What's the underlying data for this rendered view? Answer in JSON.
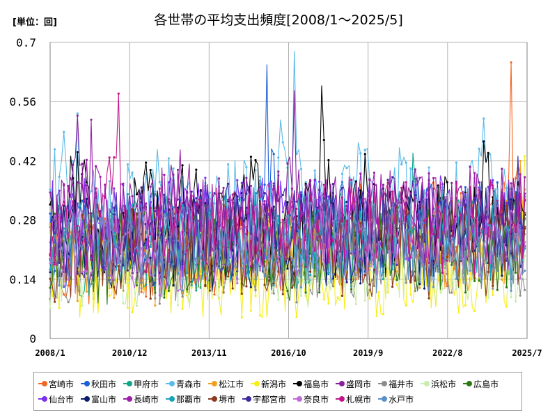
{
  "unit_label": "[単位：回]",
  "chart_data": {
    "type": "line",
    "title": "各世帯の平均支出頻度[2008/1～2025/5]",
    "xlabel": "",
    "ylabel": "",
    "ylim": [
      0,
      0.7
    ],
    "y_ticks": [
      "0",
      "0.14",
      "0.28",
      "0.42",
      "0.56",
      "0.7"
    ],
    "x_ticks": [
      "2008/1",
      "2010/12",
      "2013/11",
      "2016/10",
      "2019/9",
      "2022/8",
      "2025/7"
    ],
    "x_range": [
      "2008/1",
      "2025/7"
    ],
    "grid": true,
    "legend_position": "bottom",
    "series_count_note": "",
    "series": [
      {
        "name": "宮崎市",
        "color": "#f26522",
        "anchors": [
          0.18,
          0.16,
          0.21,
          0.17,
          0.2,
          0.19,
          0.22,
          0.18,
          0.21,
          0.24,
          0.2,
          0.23,
          0.19,
          0.21,
          0.22,
          0.2,
          0.25,
          0.21,
          0.22,
          0.19,
          0.23,
          0.24,
          0.21,
          0.26,
          0.22,
          0.23,
          0.24,
          0.25,
          0.27,
          0.23,
          0.24,
          0.26,
          0.25,
          0.27,
          0.6,
          0.29
        ],
        "peak_note": ""
      },
      {
        "name": "秋田市",
        "color": "#1a5fd6",
        "anchors": [
          0.24,
          0.22,
          0.25,
          0.21,
          0.23,
          0.26,
          0.22,
          0.24,
          0.25,
          0.23,
          0.27,
          0.24,
          0.25,
          0.23,
          0.26,
          0.24,
          0.58,
          0.27,
          0.25,
          0.24,
          0.26,
          0.25,
          0.27,
          0.24,
          0.26,
          0.28,
          0.25,
          0.27,
          0.26,
          0.28,
          0.27,
          0.25,
          0.28,
          0.26,
          0.27,
          0.28
        ]
      },
      {
        "name": "甲府市",
        "color": "#12a58a",
        "anchors": [
          0.2,
          0.22,
          0.19,
          0.21,
          0.23,
          0.2,
          0.22,
          0.21,
          0.24,
          0.22,
          0.2,
          0.23,
          0.21,
          0.22,
          0.24,
          0.21,
          0.23,
          0.25,
          0.22,
          0.24,
          0.23,
          0.25,
          0.22,
          0.24,
          0.26,
          0.23,
          0.25,
          0.5,
          0.24,
          0.26,
          0.25,
          0.24,
          0.27,
          0.25,
          0.26,
          0.25
        ]
      },
      {
        "name": "青森市",
        "color": "#5bbbe8",
        "anchors": [
          0.28,
          0.45,
          0.57,
          0.3,
          0.26,
          0.29,
          0.31,
          0.27,
          0.52,
          0.3,
          0.28,
          0.32,
          0.29,
          0.3,
          0.33,
          0.29,
          0.31,
          0.5,
          0.67,
          0.31,
          0.29,
          0.32,
          0.3,
          0.61,
          0.29,
          0.31,
          0.54,
          0.3,
          0.32,
          0.29,
          0.31,
          0.3,
          0.52,
          0.31,
          0.29,
          0.3
        ]
      },
      {
        "name": "松江市",
        "color": "#f0a020",
        "anchors": [
          0.19,
          0.21,
          0.18,
          0.2,
          0.22,
          0.19,
          0.21,
          0.2,
          0.18,
          0.22,
          0.2,
          0.21,
          0.19,
          0.22,
          0.2,
          0.21,
          0.23,
          0.2,
          0.22,
          0.21,
          0.23,
          0.2,
          0.22,
          0.24,
          0.21,
          0.23,
          0.22,
          0.2,
          0.24,
          0.22,
          0.23,
          0.21,
          0.24,
          0.22,
          0.23,
          0.38
        ]
      },
      {
        "name": "新潟市",
        "color": "#f7ee1c",
        "anchors": [
          0.16,
          0.18,
          0.14,
          0.17,
          0.15,
          0.18,
          0.16,
          0.14,
          0.17,
          0.15,
          0.13,
          0.16,
          0.14,
          0.17,
          0.15,
          0.16,
          0.14,
          0.17,
          0.15,
          0.16,
          0.18,
          0.15,
          0.17,
          0.16,
          0.14,
          0.17,
          0.15,
          0.18,
          0.16,
          0.17,
          0.15,
          0.18,
          0.16,
          0.17,
          0.15,
          0.37
        ]
      },
      {
        "name": "福島市",
        "color": "#000000",
        "anchors": [
          0.22,
          0.26,
          0.42,
          0.24,
          0.22,
          0.25,
          0.23,
          0.48,
          0.26,
          0.24,
          0.47,
          0.25,
          0.23,
          0.26,
          0.24,
          0.46,
          0.25,
          0.27,
          0.24,
          0.26,
          0.59,
          0.25,
          0.27,
          0.49,
          0.26,
          0.24,
          0.27,
          0.25,
          0.26,
          0.28,
          0.25,
          0.27,
          0.47,
          0.26,
          0.28,
          0.37
        ]
      },
      {
        "name": "盛岡市",
        "color": "#8a1f9e",
        "anchors": [
          0.24,
          0.27,
          0.56,
          0.28,
          0.25,
          0.27,
          0.26,
          0.28,
          0.25,
          0.53,
          0.26,
          0.28,
          0.27,
          0.25,
          0.28,
          0.26,
          0.27,
          0.29,
          0.51,
          0.27,
          0.28,
          0.26,
          0.29,
          0.27,
          0.28,
          0.26,
          0.29,
          0.27,
          0.28,
          0.3,
          0.27,
          0.29,
          0.28,
          0.3,
          0.28,
          0.29
        ]
      },
      {
        "name": "福井市",
        "color": "#8c8c8c",
        "anchors": [
          0.2,
          0.18,
          0.21,
          0.19,
          0.17,
          0.2,
          0.18,
          0.21,
          0.19,
          0.2,
          0.18,
          0.21,
          0.19,
          0.2,
          0.22,
          0.19,
          0.21,
          0.2,
          0.18,
          0.21,
          0.19,
          0.22,
          0.2,
          0.21,
          0.19,
          0.22,
          0.2,
          0.21,
          0.23,
          0.2,
          0.22,
          0.21,
          0.2,
          0.22,
          0.21,
          0.2
        ]
      },
      {
        "name": "浜松市",
        "color": "#c7ecb0",
        "anchors": [
          0.17,
          0.19,
          0.16,
          0.18,
          0.2,
          0.17,
          0.19,
          0.18,
          0.16,
          0.19,
          0.17,
          0.2,
          0.18,
          0.19,
          0.17,
          0.2,
          0.18,
          0.19,
          0.21,
          0.18,
          0.2,
          0.19,
          0.17,
          0.2,
          0.18,
          0.21,
          0.19,
          0.2,
          0.18,
          0.21,
          0.19,
          0.2,
          0.18,
          0.21,
          0.19,
          0.2
        ]
      },
      {
        "name": "広島市",
        "color": "#2a7a12",
        "anchors": [
          0.21,
          0.19,
          0.22,
          0.2,
          0.18,
          0.21,
          0.19,
          0.22,
          0.2,
          0.21,
          0.19,
          0.22,
          0.2,
          0.21,
          0.23,
          0.2,
          0.22,
          0.21,
          0.19,
          0.22,
          0.2,
          0.23,
          0.21,
          0.22,
          0.2,
          0.23,
          0.21,
          0.22,
          0.2,
          0.23,
          0.21,
          0.22,
          0.24,
          0.21,
          0.23,
          0.22
        ]
      },
      {
        "name": "仙台市",
        "color": "#7b2ff0",
        "anchors": [
          0.27,
          0.25,
          0.28,
          0.26,
          0.24,
          0.27,
          0.25,
          0.28,
          0.26,
          0.27,
          0.25,
          0.28,
          0.26,
          0.27,
          0.29,
          0.26,
          0.28,
          0.27,
          0.25,
          0.28,
          0.26,
          0.29,
          0.27,
          0.28,
          0.26,
          0.29,
          0.27,
          0.28,
          0.26,
          0.29,
          0.27,
          0.28,
          0.3,
          0.27,
          0.29,
          0.28
        ]
      },
      {
        "name": "富山市",
        "color": "#0b1d6e",
        "anchors": [
          0.23,
          0.21,
          0.24,
          0.22,
          0.2,
          0.23,
          0.21,
          0.24,
          0.22,
          0.23,
          0.21,
          0.24,
          0.22,
          0.23,
          0.25,
          0.22,
          0.24,
          0.23,
          0.21,
          0.24,
          0.22,
          0.25,
          0.23,
          0.24,
          0.22,
          0.25,
          0.23,
          0.24,
          0.22,
          0.25,
          0.23,
          0.24,
          0.26,
          0.23,
          0.25,
          0.24
        ]
      },
      {
        "name": "長崎市",
        "color": "#9b1fa8",
        "anchors": [
          0.25,
          0.3,
          0.28,
          0.55,
          0.27,
          0.3,
          0.28,
          0.26,
          0.29,
          0.27,
          0.53,
          0.28,
          0.26,
          0.29,
          0.27,
          0.28,
          0.3,
          0.27,
          0.29,
          0.28,
          0.26,
          0.29,
          0.27,
          0.3,
          0.28,
          0.29,
          0.27,
          0.3,
          0.28,
          0.29,
          0.27,
          0.3,
          0.28,
          0.29,
          0.31,
          0.28
        ]
      },
      {
        "name": "那覇市",
        "color": "#1aa3b8",
        "anchors": [
          0.22,
          0.24,
          0.21,
          0.23,
          0.25,
          0.22,
          0.24,
          0.23,
          0.21,
          0.24,
          0.22,
          0.25,
          0.23,
          0.24,
          0.22,
          0.25,
          0.23,
          0.24,
          0.26,
          0.23,
          0.25,
          0.24,
          0.22,
          0.25,
          0.23,
          0.26,
          0.24,
          0.25,
          0.23,
          0.26,
          0.24,
          0.25,
          0.23,
          0.26,
          0.24,
          0.25
        ]
      },
      {
        "name": "堺市",
        "color": "#8b3a1e",
        "anchors": [
          0.19,
          0.21,
          0.18,
          0.2,
          0.22,
          0.19,
          0.21,
          0.2,
          0.18,
          0.21,
          0.19,
          0.22,
          0.2,
          0.21,
          0.19,
          0.22,
          0.2,
          0.21,
          0.23,
          0.2,
          0.22,
          0.21,
          0.19,
          0.22,
          0.2,
          0.23,
          0.21,
          0.22,
          0.2,
          0.23,
          0.21,
          0.22,
          0.2,
          0.23,
          0.21,
          0.22
        ]
      },
      {
        "name": "宇都宮市",
        "color": "#3b2a9e",
        "anchors": [
          0.24,
          0.26,
          0.23,
          0.25,
          0.27,
          0.24,
          0.26,
          0.25,
          0.23,
          0.26,
          0.24,
          0.27,
          0.25,
          0.26,
          0.24,
          0.27,
          0.25,
          0.26,
          0.28,
          0.25,
          0.27,
          0.26,
          0.24,
          0.27,
          0.25,
          0.28,
          0.26,
          0.27,
          0.25,
          0.28,
          0.26,
          0.27,
          0.25,
          0.28,
          0.26,
          0.42
        ]
      },
      {
        "name": "奈良市",
        "color": "#c06ad8",
        "anchors": [
          0.21,
          0.23,
          0.2,
          0.22,
          0.24,
          0.21,
          0.23,
          0.22,
          0.2,
          0.23,
          0.21,
          0.24,
          0.22,
          0.23,
          0.21,
          0.24,
          0.22,
          0.23,
          0.25,
          0.22,
          0.24,
          0.23,
          0.21,
          0.24,
          0.22,
          0.25,
          0.23,
          0.24,
          0.22,
          0.25,
          0.23,
          0.24,
          0.22,
          0.25,
          0.23,
          0.24
        ]
      },
      {
        "name": "札幌市",
        "color": "#c2178a",
        "anchors": [
          0.22,
          0.25,
          0.23,
          0.26,
          0.24,
          0.6,
          0.25,
          0.23,
          0.26,
          0.24,
          0.27,
          0.25,
          0.26,
          0.24,
          0.27,
          0.25,
          0.26,
          0.28,
          0.25,
          0.27,
          0.26,
          0.24,
          0.27,
          0.25,
          0.28,
          0.26,
          0.27,
          0.25,
          0.28,
          0.26,
          0.27,
          0.25,
          0.28,
          0.26,
          0.27,
          0.26
        ]
      },
      {
        "name": "水戸市",
        "color": "#5b8fc7",
        "anchors": [
          0.2,
          0.22,
          0.19,
          0.21,
          0.23,
          0.2,
          0.22,
          0.21,
          0.19,
          0.22,
          0.2,
          0.23,
          0.21,
          0.22,
          0.2,
          0.23,
          0.21,
          0.22,
          0.24,
          0.21,
          0.23,
          0.22,
          0.2,
          0.23,
          0.21,
          0.24,
          0.22,
          0.23,
          0.21,
          0.24,
          0.22,
          0.23,
          0.21,
          0.24,
          0.22,
          0.23
        ]
      }
    ]
  }
}
